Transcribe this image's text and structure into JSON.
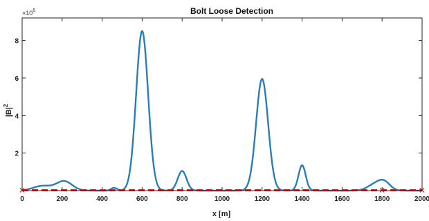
{
  "chart_data": {
    "type": "line",
    "title": "Bolt Loose Detection",
    "xlabel": "x [m]",
    "ylabel_base": "|B|",
    "ylabel_exp": "2",
    "y_multiplier_base": "×10",
    "y_multiplier_exp": "6",
    "xlim": [
      0,
      2000
    ],
    "ylim": [
      0,
      9.2
    ],
    "xticks": [
      0,
      200,
      400,
      600,
      800,
      1000,
      1200,
      1400,
      1600,
      1800,
      2000
    ],
    "yticks": [
      2,
      4,
      6,
      8
    ],
    "grid": false,
    "colors": {
      "signal": "#2a7db8",
      "baseline": "#c0282d",
      "axes": "#222222"
    },
    "series": [
      {
        "style": "solid",
        "peaks": [
          {
            "x": 100,
            "height": 0.25,
            "width": 45
          },
          {
            "x": 210,
            "height": 0.5,
            "width": 40
          },
          {
            "x": 460,
            "height": 0.15,
            "width": 15
          },
          {
            "x": 600,
            "height": 8.5,
            "width": 30
          },
          {
            "x": 800,
            "height": 1.05,
            "width": 22
          },
          {
            "x": 1200,
            "height": 5.95,
            "width": 30
          },
          {
            "x": 1400,
            "height": 1.35,
            "width": 18
          },
          {
            "x": 1760,
            "height": 0.3,
            "width": 35
          },
          {
            "x": 1810,
            "height": 0.45,
            "width": 30
          }
        ]
      },
      {
        "style": "dashed",
        "x": [
          0,
          2000
        ],
        "values": [
          0.02,
          0.02
        ]
      }
    ],
    "markers": [
      {
        "x": 0,
        "y": 0.02
      },
      {
        "x": 1800,
        "y": 0.02
      },
      {
        "x": 2000,
        "y": 0.02
      }
    ]
  }
}
